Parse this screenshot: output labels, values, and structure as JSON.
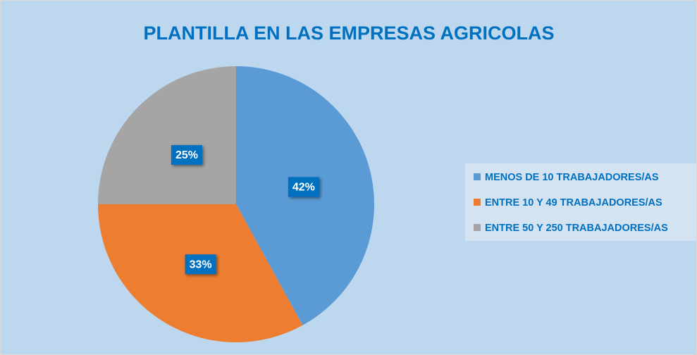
{
  "chart_data": {
    "type": "pie",
    "title": "PLANTILLA EN LAS EMPRESAS AGRICOLAS",
    "categories": [
      "MENOS DE 10 TRABAJADORES/AS",
      "ENTRE 10 Y 49 TRABAJADORES/AS",
      "ENTRE 50 Y 250 TRABAJADORES/AS"
    ],
    "values": [
      42,
      33,
      25
    ],
    "value_labels": [
      "42%",
      "33%",
      "25%"
    ],
    "colors": [
      "#5b9bd5",
      "#ed7d31",
      "#a5a5a5"
    ],
    "legend": "right"
  }
}
